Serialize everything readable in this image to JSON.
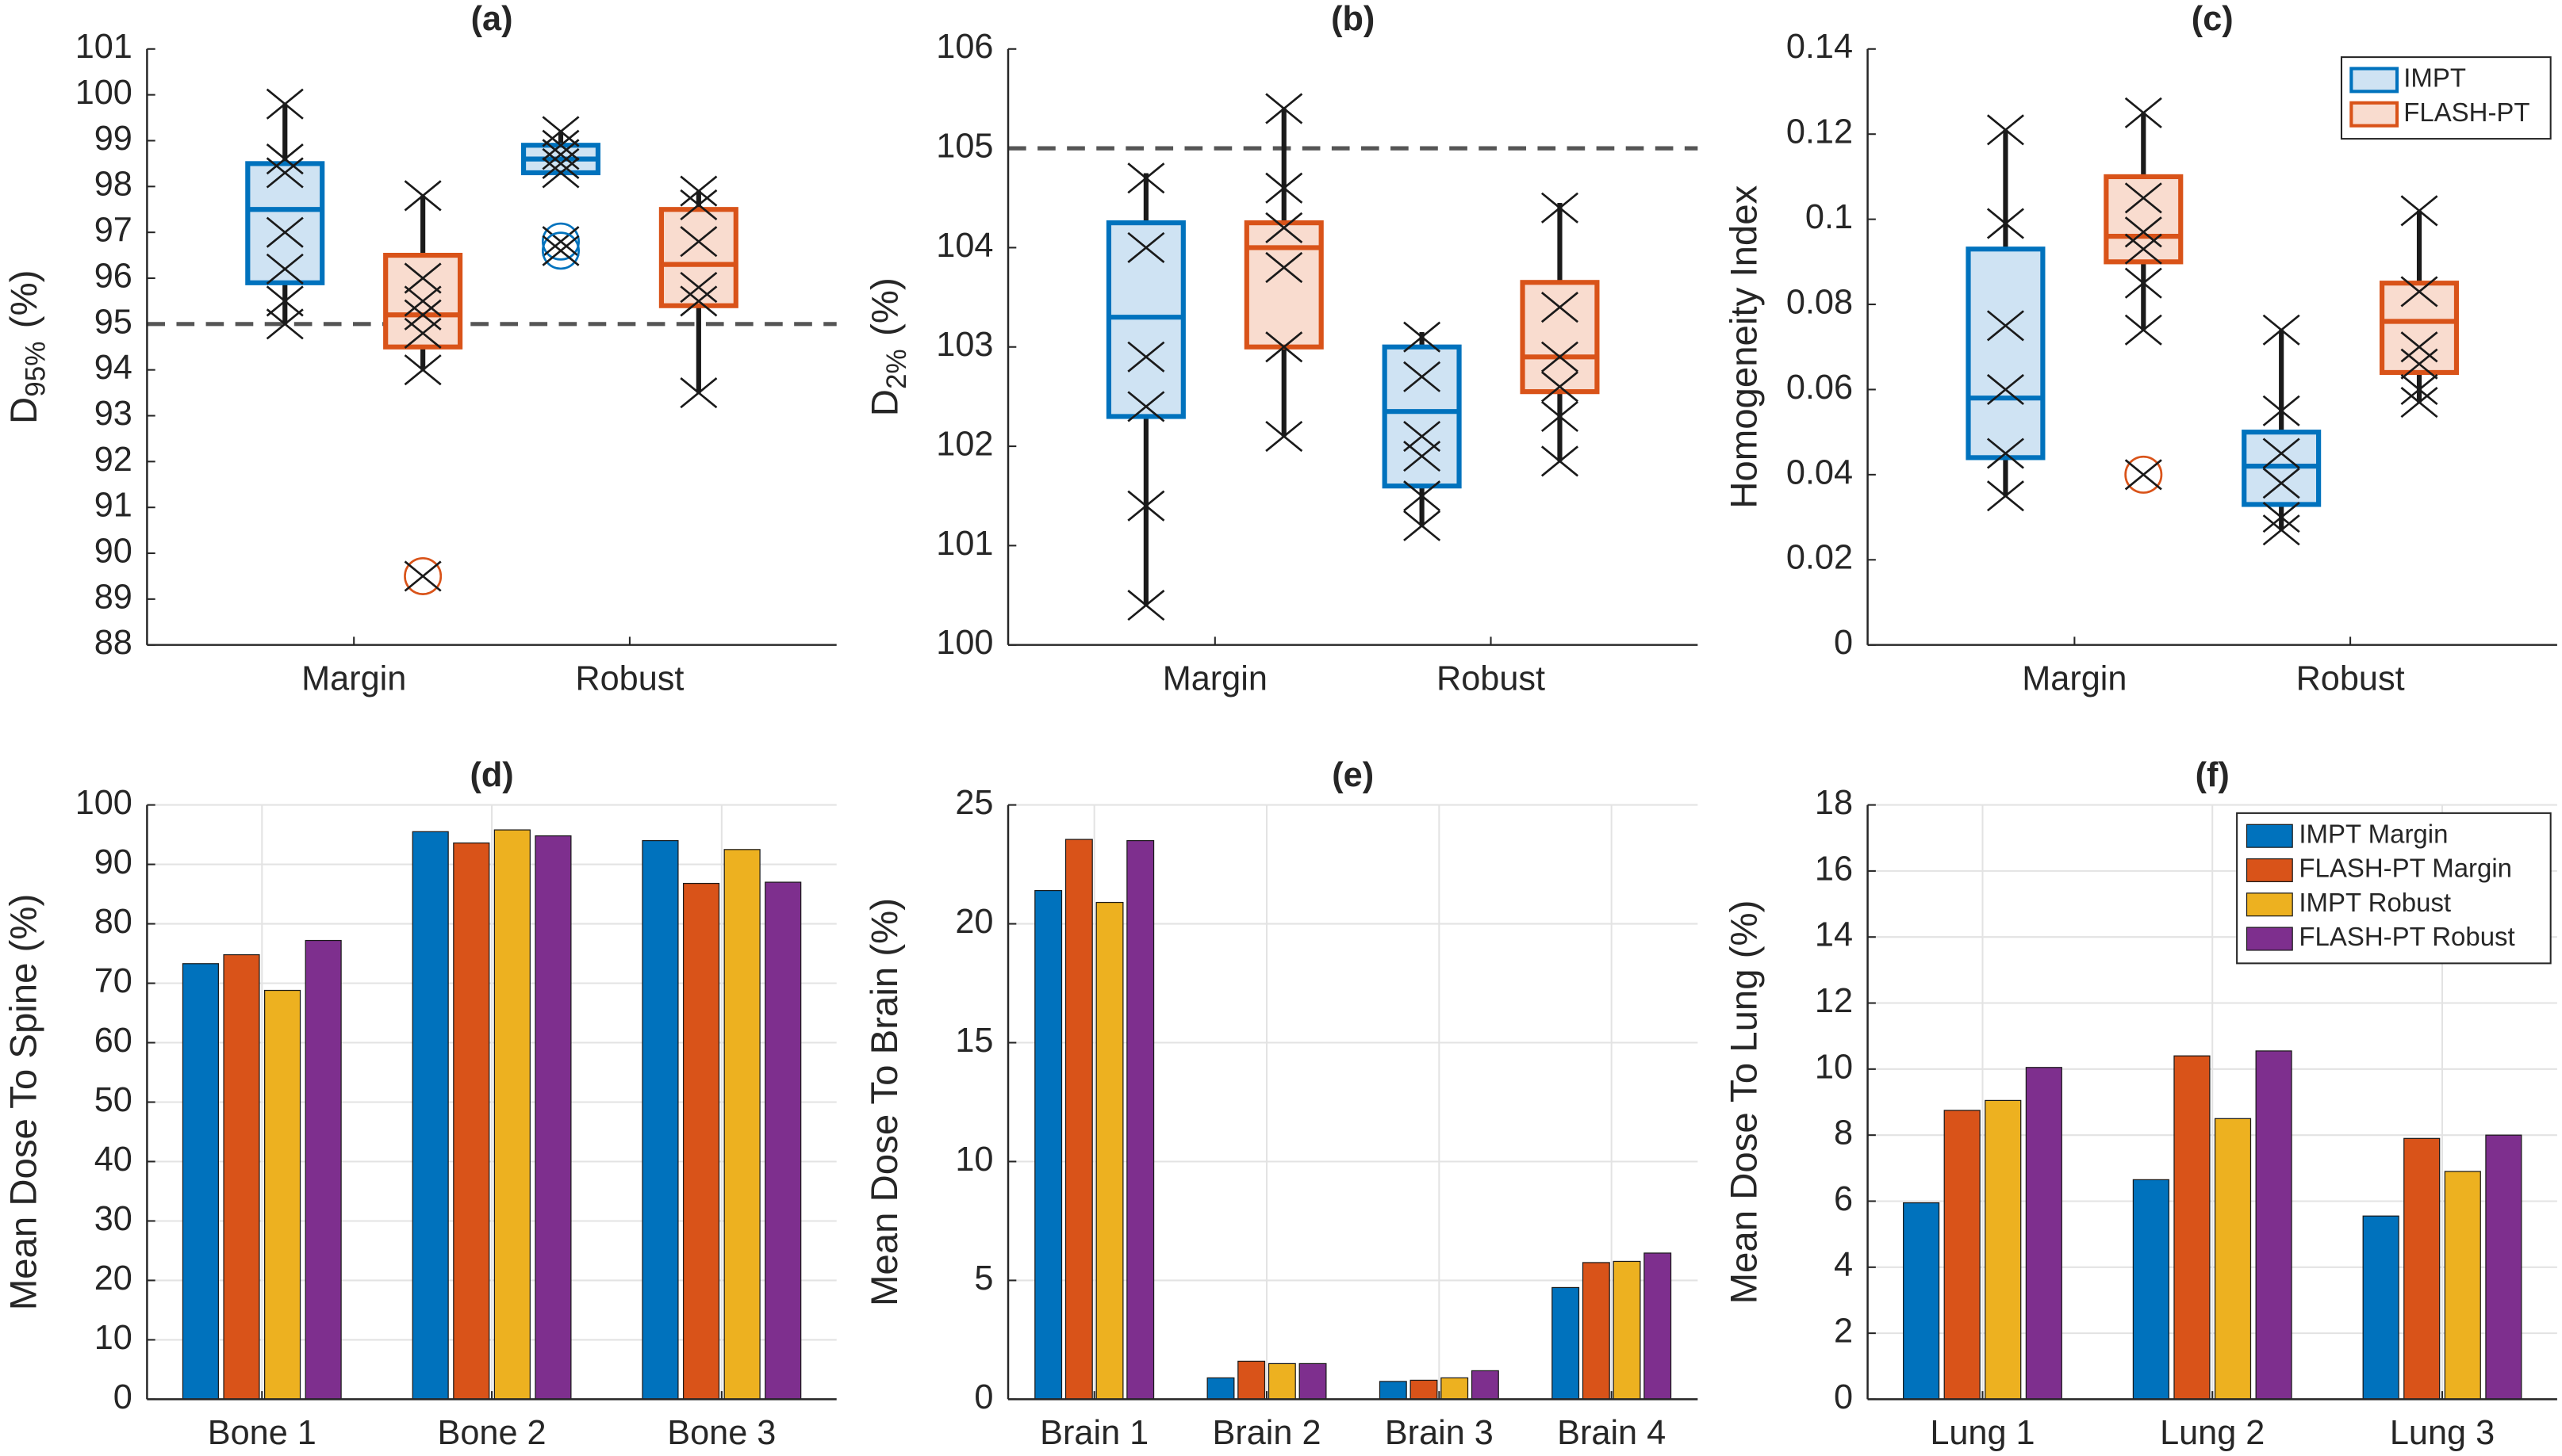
{
  "chart_data": [
    {
      "type": "box",
      "title": "(a)",
      "ylabel": [
        "D",
        "95%",
        "(%)"
      ],
      "categories": [
        "Margin",
        "Robust"
      ],
      "ylim": [
        88,
        101
      ],
      "yticks": [
        88,
        89,
        90,
        91,
        92,
        93,
        94,
        95,
        96,
        97,
        98,
        99,
        100,
        101
      ],
      "refline": 95,
      "grid": false,
      "series": [
        {
          "name": "IMPT",
          "color": "#0072BD",
          "fill": "#cfe3f3",
          "boxes": [
            {
              "whislo": 95.0,
              "q1": 95.9,
              "med": 97.5,
              "q3": 98.5,
              "whishi": 99.8,
              "outliers": [],
              "points": [
                99.8,
                98.6,
                98.3,
                97.0,
                96.2,
                95.5,
                95.0
              ]
            },
            {
              "whislo": 98.3,
              "q1": 98.3,
              "med": 98.6,
              "q3": 98.9,
              "whishi": 99.2,
              "outliers": [
                96.8,
                96.6
              ],
              "points": [
                99.2,
                98.9,
                98.7,
                98.5,
                98.3
              ]
            }
          ]
        },
        {
          "name": "FLASH-PT",
          "color": "#D95319",
          "fill": "#f9dccf",
          "boxes": [
            {
              "whislo": 94.0,
              "q1": 94.5,
              "med": 95.2,
              "q3": 96.5,
              "whishi": 97.8,
              "outliers": [
                89.5
              ],
              "points": [
                97.8,
                96.0,
                95.5,
                95.2,
                94.8,
                94.0
              ]
            },
            {
              "whislo": 93.5,
              "q1": 95.4,
              "med": 96.3,
              "q3": 97.5,
              "whishi": 97.9,
              "outliers": [],
              "points": [
                97.9,
                97.6,
                96.8,
                95.8,
                95.5,
                93.5
              ]
            }
          ]
        }
      ]
    },
    {
      "type": "box",
      "title": "(b)",
      "ylabel": [
        "D",
        "2%",
        "(%)"
      ],
      "categories": [
        "Margin",
        "Robust"
      ],
      "ylim": [
        100,
        106
      ],
      "yticks": [
        100,
        101,
        102,
        103,
        104,
        105,
        106
      ],
      "refline": 105,
      "grid": false,
      "series": [
        {
          "name": "IMPT",
          "color": "#0072BD",
          "fill": "#cfe3f3",
          "boxes": [
            {
              "whislo": 100.4,
              "q1": 102.3,
              "med": 103.3,
              "q3": 104.25,
              "whishi": 104.75,
              "outliers": [],
              "points": [
                104.7,
                104.0,
                102.9,
                102.4,
                101.4,
                100.4
              ]
            },
            {
              "whislo": 101.2,
              "q1": 101.6,
              "med": 102.35,
              "q3": 103.0,
              "whishi": 103.15,
              "outliers": [],
              "points": [
                103.1,
                102.7,
                102.1,
                101.9,
                101.5,
                101.2
              ]
            }
          ]
        },
        {
          "name": "FLASH-PT",
          "color": "#D95319",
          "fill": "#f9dccf",
          "boxes": [
            {
              "whislo": 102.1,
              "q1": 103.0,
              "med": 104.0,
              "q3": 104.25,
              "whishi": 105.4,
              "outliers": [],
              "points": [
                105.4,
                104.6,
                104.2,
                103.8,
                103.0,
                102.1
              ]
            },
            {
              "whislo": 101.85,
              "q1": 102.55,
              "med": 102.9,
              "q3": 103.65,
              "whishi": 104.45,
              "outliers": [],
              "points": [
                104.4,
                103.4,
                102.9,
                102.6,
                102.3,
                101.85
              ]
            }
          ]
        }
      ]
    },
    {
      "type": "box",
      "title": "(c)",
      "ylabel": "Homogeneity Index",
      "categories": [
        "Margin",
        "Robust"
      ],
      "ylim": [
        0,
        0.14
      ],
      "yticks": [
        0,
        0.02,
        0.04,
        0.06,
        0.08,
        0.1,
        0.12,
        0.14
      ],
      "grid": false,
      "legend": "upper right",
      "series": [
        {
          "name": "IMPT",
          "color": "#0072BD",
          "fill": "#cfe3f3",
          "boxes": [
            {
              "whislo": 0.035,
              "q1": 0.044,
              "med": 0.058,
              "q3": 0.093,
              "whishi": 0.121,
              "outliers": [],
              "points": [
                0.121,
                0.099,
                0.075,
                0.06,
                0.045,
                0.035
              ]
            },
            {
              "whislo": 0.027,
              "q1": 0.033,
              "med": 0.042,
              "q3": 0.05,
              "whishi": 0.074,
              "outliers": [],
              "points": [
                0.074,
                0.055,
                0.045,
                0.038,
                0.03,
                0.027
              ]
            }
          ]
        },
        {
          "name": "FLASH-PT",
          "color": "#D95319",
          "fill": "#f9dccf",
          "boxes": [
            {
              "whislo": 0.074,
              "q1": 0.09,
              "med": 0.096,
              "q3": 0.11,
              "whishi": 0.125,
              "outliers": [
                0.04
              ],
              "points": [
                0.125,
                0.105,
                0.097,
                0.093,
                0.085,
                0.074
              ]
            },
            {
              "whislo": 0.057,
              "q1": 0.064,
              "med": 0.076,
              "q3": 0.085,
              "whishi": 0.102,
              "outliers": [],
              "points": [
                0.102,
                0.083,
                0.07,
                0.066,
                0.06,
                0.057
              ]
            }
          ]
        }
      ]
    },
    {
      "type": "bar",
      "title": "(d)",
      "ylabel": "Mean Dose To Spine (%)",
      "categories": [
        "Bone 1",
        "Bone 2",
        "Bone 3"
      ],
      "ylim": [
        0,
        100
      ],
      "yticks": [
        0,
        10,
        20,
        30,
        40,
        50,
        60,
        70,
        80,
        90,
        100
      ],
      "grid": true,
      "series": [
        {
          "name": "IMPT Margin",
          "color": "#0072BD",
          "values": [
            73.3,
            95.5,
            94.0
          ]
        },
        {
          "name": "FLASH-PT Margin",
          "color": "#D95319",
          "values": [
            74.8,
            93.6,
            86.8
          ]
        },
        {
          "name": "IMPT Robust",
          "color": "#EDB120",
          "values": [
            68.8,
            95.8,
            92.5
          ]
        },
        {
          "name": "FLASH-PT Robust",
          "color": "#7E2F8E",
          "values": [
            77.2,
            94.8,
            87.0
          ]
        }
      ]
    },
    {
      "type": "bar",
      "title": "(e)",
      "ylabel": "Mean Dose To Brain (%)",
      "categories": [
        "Brain 1",
        "Brain 2",
        "Brain 3",
        "Brain 4"
      ],
      "ylim": [
        0,
        25
      ],
      "yticks": [
        0,
        5,
        10,
        15,
        20,
        25
      ],
      "grid": true,
      "series": [
        {
          "name": "IMPT Margin",
          "color": "#0072BD",
          "values": [
            21.4,
            0.9,
            0.75,
            4.7
          ]
        },
        {
          "name": "FLASH-PT Margin",
          "color": "#D95319",
          "values": [
            23.55,
            1.6,
            0.8,
            5.75
          ]
        },
        {
          "name": "IMPT Robust",
          "color": "#EDB120",
          "values": [
            20.9,
            1.5,
            0.9,
            5.8
          ]
        },
        {
          "name": "FLASH-PT Robust",
          "color": "#7E2F8E",
          "values": [
            23.5,
            1.5,
            1.2,
            6.15
          ]
        }
      ]
    },
    {
      "type": "bar",
      "title": "(f)",
      "ylabel": "Mean Dose To Lung (%)",
      "categories": [
        "Lung 1",
        "Lung 2",
        "Lung 3"
      ],
      "ylim": [
        0,
        18
      ],
      "yticks": [
        0,
        2,
        4,
        6,
        8,
        10,
        12,
        14,
        16,
        18
      ],
      "grid": true,
      "legend": "upper right",
      "series": [
        {
          "name": "IMPT Margin",
          "color": "#0072BD",
          "values": [
            5.95,
            6.65,
            5.55
          ]
        },
        {
          "name": "FLASH-PT Margin",
          "color": "#D95319",
          "values": [
            8.75,
            10.4,
            7.9
          ]
        },
        {
          "name": "IMPT Robust",
          "color": "#EDB120",
          "values": [
            9.05,
            8.5,
            6.9
          ]
        },
        {
          "name": "FLASH-PT Robust",
          "color": "#7E2F8E",
          "values": [
            10.05,
            10.55,
            8.0
          ]
        }
      ]
    }
  ]
}
